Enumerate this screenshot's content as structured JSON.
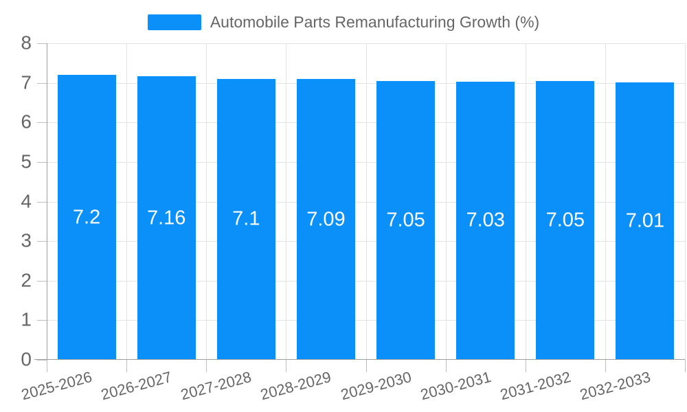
{
  "chart_data": {
    "type": "bar",
    "title": "Automobile Parts Remanufacturing Growth (%)",
    "categories": [
      "2025-2026",
      "2026-2027",
      "2027-2028",
      "2028-2029",
      "2029-2030",
      "2030-2031",
      "2031-2032",
      "2032-2033"
    ],
    "values": [
      7.2,
      7.16,
      7.1,
      7.09,
      7.05,
      7.03,
      7.05,
      7.01
    ],
    "value_labels": [
      "7.2",
      "7.16",
      "7.1",
      "7.09",
      "7.05",
      "7.03",
      "7.05",
      "7.01"
    ],
    "xlabel": "",
    "ylabel": "",
    "ylim": [
      0,
      8
    ],
    "y_ticks": [
      0,
      1,
      2,
      3,
      4,
      5,
      6,
      7,
      8
    ],
    "grid": true,
    "legend_position": "top-center",
    "bar_label_position": "inside-center",
    "x_label_rotation_deg": -15
  },
  "colors": {
    "bar": "#0b90f9",
    "bar_label": "#ffffff",
    "axis_text": "#666666",
    "grid_line": "#e3e3e3",
    "axis_line": "#9e9e9e",
    "tick_mark": "#bdbdbd",
    "background": "#ffffff"
  }
}
